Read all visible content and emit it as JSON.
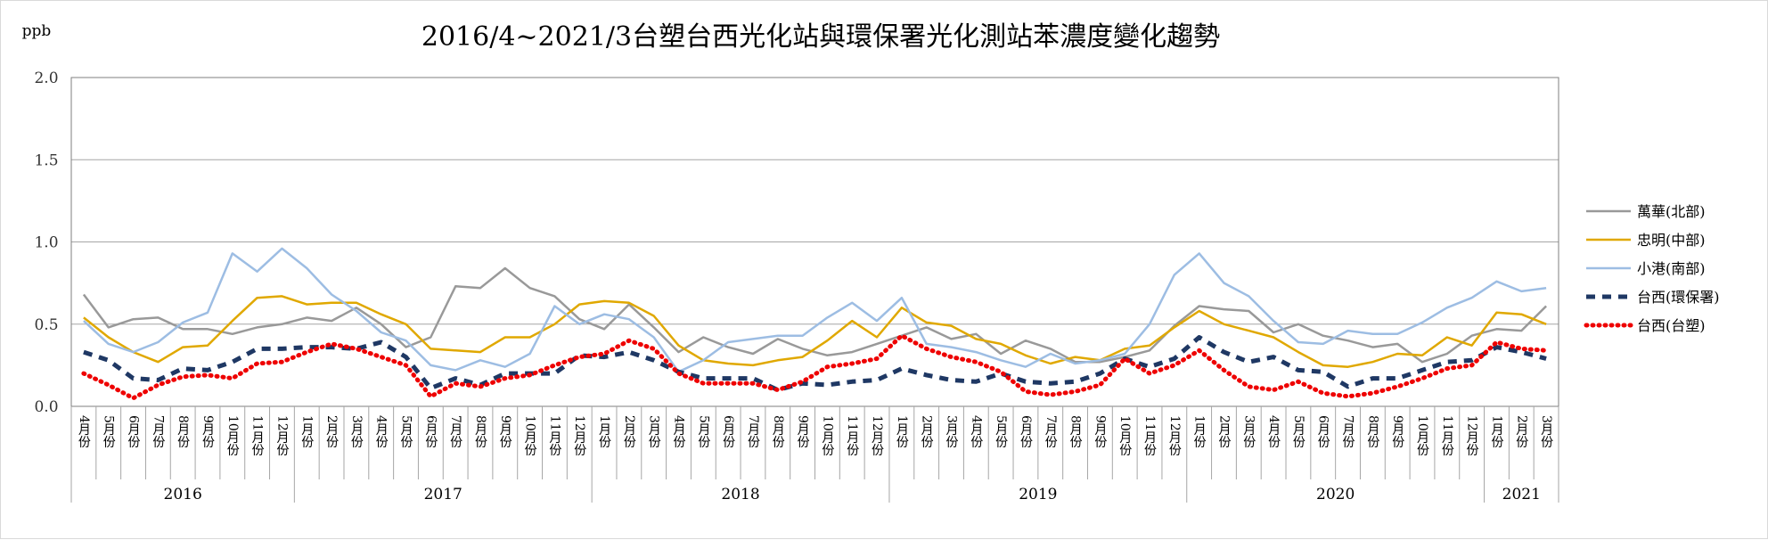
{
  "chart_data": {
    "type": "line",
    "title": "2016/4~2021/3台塑台西光化站與環保署光化測站苯濃度變化趨勢",
    "ylabel": "ppb",
    "ylim": [
      0,
      2.0
    ],
    "y_ticks": [
      "0.0",
      "0.5",
      "1.0",
      "1.5",
      "2.0"
    ],
    "y_tick_values": [
      0,
      0.5,
      1.0,
      1.5,
      2.0
    ],
    "grid": true,
    "legend_position": "right",
    "categories": [
      "4月份",
      "5月份",
      "6月份",
      "7月份",
      "8月份",
      "9月份",
      "10月份",
      "11月份",
      "12月份",
      "1月份",
      "2月份",
      "3月份",
      "4月份",
      "5月份",
      "6月份",
      "7月份",
      "8月份",
      "9月份",
      "10月份",
      "11月份",
      "12月份",
      "1月份",
      "2月份",
      "3月份",
      "4月份",
      "5月份",
      "6月份",
      "7月份",
      "8月份",
      "9月份",
      "10月份",
      "11月份",
      "12月份",
      "1月份",
      "2月份",
      "3月份",
      "4月份",
      "5月份",
      "6月份",
      "7月份",
      "8月份",
      "9月份",
      "10月份",
      "11月份",
      "12月份",
      "1月份",
      "2月份",
      "3月份",
      "4月份",
      "5月份",
      "6月份",
      "7月份",
      "8月份",
      "9月份",
      "10月份",
      "11月份",
      "12月份",
      "1月份",
      "2月份",
      "3月份"
    ],
    "years": [
      {
        "label": "2016",
        "count": 9
      },
      {
        "label": "2017",
        "count": 12
      },
      {
        "label": "2018",
        "count": 12
      },
      {
        "label": "2019",
        "count": 12
      },
      {
        "label": "2020",
        "count": 12
      },
      {
        "label": "2021",
        "count": 3
      }
    ],
    "series": [
      {
        "name": "萬華(北部)",
        "color": "#999999",
        "dash": "solid",
        "width": 2.5,
        "values": [
          0.68,
          0.48,
          0.53,
          0.54,
          0.47,
          0.47,
          0.44,
          0.48,
          0.5,
          0.54,
          0.52,
          0.6,
          0.5,
          0.36,
          0.42,
          0.73,
          0.72,
          0.84,
          0.72,
          0.67,
          0.53,
          0.47,
          0.62,
          0.48,
          0.33,
          0.42,
          0.36,
          0.32,
          0.41,
          0.35,
          0.31,
          0.33,
          0.38,
          0.43,
          0.48,
          0.41,
          0.44,
          0.32,
          0.4,
          0.35,
          0.27,
          0.27,
          0.3,
          0.34,
          0.49,
          0.61,
          0.59,
          0.58,
          0.45,
          0.5,
          0.43,
          0.4,
          0.36,
          0.38,
          0.27,
          0.32,
          0.43,
          0.47,
          0.46,
          0.61
        ]
      },
      {
        "name": "忠明(中部)",
        "color": "#e0a800",
        "dash": "solid",
        "width": 2.5,
        "values": [
          0.54,
          0.42,
          0.33,
          0.27,
          0.36,
          0.37,
          0.52,
          0.66,
          0.67,
          0.62,
          0.63,
          0.63,
          0.56,
          0.5,
          0.35,
          0.34,
          0.33,
          0.42,
          0.42,
          0.5,
          0.62,
          0.64,
          0.63,
          0.55,
          0.37,
          0.28,
          0.26,
          0.25,
          0.28,
          0.3,
          0.4,
          0.52,
          0.42,
          0.6,
          0.51,
          0.49,
          0.41,
          0.38,
          0.31,
          0.26,
          0.3,
          0.28,
          0.35,
          0.37,
          0.48,
          0.58,
          0.5,
          0.46,
          0.42,
          0.33,
          0.25,
          0.24,
          0.27,
          0.32,
          0.31,
          0.42,
          0.37,
          0.57,
          0.56,
          0.5
        ]
      },
      {
        "name": "小港(南部)",
        "color": "#9dbde3",
        "dash": "solid",
        "width": 2.5,
        "values": [
          0.52,
          0.38,
          0.33,
          0.39,
          0.51,
          0.57,
          0.93,
          0.82,
          0.96,
          0.84,
          0.68,
          0.58,
          0.45,
          0.4,
          0.25,
          0.22,
          0.28,
          0.24,
          0.32,
          0.61,
          0.5,
          0.56,
          0.53,
          0.42,
          0.21,
          0.28,
          0.39,
          0.41,
          0.43,
          0.43,
          0.54,
          0.63,
          0.52,
          0.66,
          0.38,
          0.36,
          0.33,
          0.28,
          0.24,
          0.32,
          0.26,
          0.28,
          0.32,
          0.5,
          0.8,
          0.93,
          0.75,
          0.67,
          0.52,
          0.39,
          0.38,
          0.46,
          0.44,
          0.44,
          0.51,
          0.6,
          0.66,
          0.76,
          0.7,
          0.72
        ]
      },
      {
        "name": "台西(環保署)",
        "color": "#1f3864",
        "dash": "10,8",
        "width": 5,
        "values": [
          0.33,
          0.28,
          0.17,
          0.16,
          0.23,
          0.22,
          0.27,
          0.35,
          0.35,
          0.36,
          0.36,
          0.35,
          0.39,
          0.3,
          0.11,
          0.17,
          0.13,
          0.2,
          0.2,
          0.2,
          0.31,
          0.3,
          0.33,
          0.28,
          0.21,
          0.17,
          0.17,
          0.17,
          0.1,
          0.14,
          0.13,
          0.15,
          0.16,
          0.23,
          0.19,
          0.16,
          0.15,
          0.2,
          0.15,
          0.14,
          0.15,
          0.2,
          0.29,
          0.24,
          0.29,
          0.42,
          0.33,
          0.27,
          0.3,
          0.22,
          0.21,
          0.12,
          0.17,
          0.17,
          0.22,
          0.27,
          0.28,
          0.36,
          0.33,
          0.29
        ]
      },
      {
        "name": "台西(台塑)",
        "color": "#ee0000",
        "dash": "1,6",
        "width": 5,
        "values": [
          0.2,
          0.13,
          0.05,
          0.13,
          0.18,
          0.19,
          0.17,
          0.26,
          0.27,
          0.33,
          0.38,
          0.35,
          0.3,
          0.25,
          0.06,
          0.14,
          0.12,
          0.17,
          0.19,
          0.25,
          0.3,
          0.32,
          0.4,
          0.35,
          0.2,
          0.14,
          0.14,
          0.14,
          0.1,
          0.15,
          0.24,
          0.26,
          0.29,
          0.43,
          0.35,
          0.3,
          0.27,
          0.21,
          0.09,
          0.07,
          0.09,
          0.13,
          0.29,
          0.2,
          0.25,
          0.34,
          0.22,
          0.12,
          0.1,
          0.15,
          0.08,
          0.06,
          0.08,
          0.12,
          0.17,
          0.23,
          0.25,
          0.39,
          0.35,
          0.34
        ]
      }
    ]
  }
}
